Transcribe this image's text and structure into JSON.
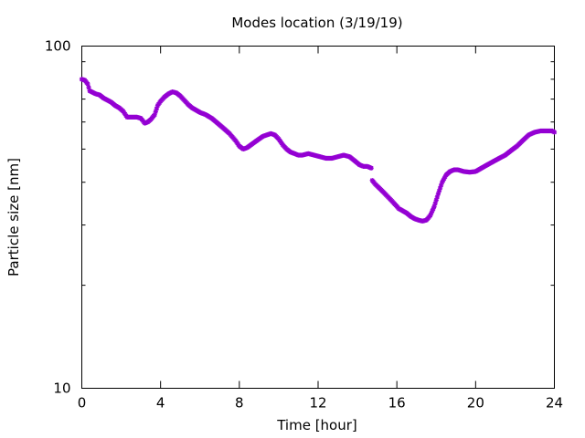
{
  "chart_data": {
    "type": "scatter",
    "title": "Modes location (3/19/19)",
    "xlabel": "Time [hour]",
    "ylabel": "Particle size [nm]",
    "xlim": [
      0,
      24
    ],
    "ylim": [
      10,
      100
    ],
    "yscale": "log",
    "grid": false,
    "legend": "none",
    "x_ticks": [
      0,
      4,
      8,
      12,
      16,
      20,
      24
    ],
    "x_tick_labels": [
      "0",
      "4",
      "8",
      "12",
      "16",
      "20",
      "24"
    ],
    "y_ticks": [
      10,
      100
    ],
    "y_tick_labels": [
      "10",
      "100"
    ],
    "marker_color": "#9400d3",
    "series": [
      {
        "segments": [
          {
            "x": [
              0.0,
              0.15,
              0.3,
              0.4,
              0.5,
              0.7,
              0.9,
              1.1,
              1.3,
              1.5,
              1.7,
              1.9,
              2.1,
              2.3,
              2.4,
              2.6,
              2.8,
              3.0,
              3.2,
              3.35,
              3.5,
              3.7,
              3.85,
              4.0,
              4.2,
              4.4,
              4.6,
              4.8,
              5.0,
              5.2,
              5.4,
              5.6,
              5.8,
              6.0,
              6.3,
              6.6,
              6.9,
              7.2,
              7.5,
              7.8,
              8.0,
              8.2,
              8.4,
              8.6,
              8.8,
              9.0,
              9.2,
              9.4,
              9.6,
              9.8,
              10.0,
              10.2,
              10.4,
              10.6,
              10.8,
              11.0,
              11.2,
              11.5,
              11.8,
              12.1,
              12.4,
              12.7,
              13.0,
              13.3,
              13.6,
              13.9,
              14.1,
              14.3,
              14.5,
              14.7
            ],
            "y": [
              80,
              79.5,
              77.5,
              74,
              73.5,
              72.5,
              72,
              70.5,
              69.5,
              68.5,
              67,
              66,
              64.5,
              62,
              62,
              62,
              62,
              61.5,
              59.5,
              60,
              61,
              63,
              67,
              69,
              71,
              72.5,
              73.5,
              73,
              71.5,
              69.5,
              67.5,
              66,
              65,
              64,
              63,
              61.5,
              59.5,
              57.5,
              55.5,
              53,
              51,
              50,
              50.5,
              51.5,
              52.5,
              53.5,
              54.5,
              55,
              55.5,
              55,
              53.5,
              51.5,
              50,
              49,
              48.5,
              48,
              48,
              48.5,
              48,
              47.5,
              47,
              47,
              47.5,
              48,
              47.5,
              46,
              45,
              44.5,
              44.5,
              44
            ]
          },
          {
            "x": [
              14.75,
              14.9,
              15.1,
              15.3,
              15.5,
              15.7,
              15.9,
              16.1,
              16.3,
              16.5,
              16.7,
              16.9,
              17.1,
              17.3,
              17.5,
              17.7,
              17.9,
              18.1,
              18.3,
              18.5,
              18.7,
              18.9,
              19.1,
              19.4,
              19.7,
              20.0,
              20.3,
              20.6,
              20.9,
              21.2,
              21.5,
              21.8,
              22.1,
              22.4,
              22.7,
              23.0,
              23.3,
              23.6,
              23.9,
              24.0
            ],
            "y": [
              40.5,
              39.5,
              38.5,
              37.5,
              36.5,
              35.5,
              34.5,
              33.5,
              33,
              32.5,
              31.8,
              31.3,
              31,
              30.8,
              31,
              32,
              34,
              37,
              40,
              42,
              43,
              43.5,
              43.5,
              43,
              42.8,
              43,
              44,
              45,
              46,
              47,
              48,
              49.5,
              51,
              53,
              55,
              56,
              56.5,
              56.5,
              56.5,
              56
            ]
          }
        ]
      }
    ]
  }
}
